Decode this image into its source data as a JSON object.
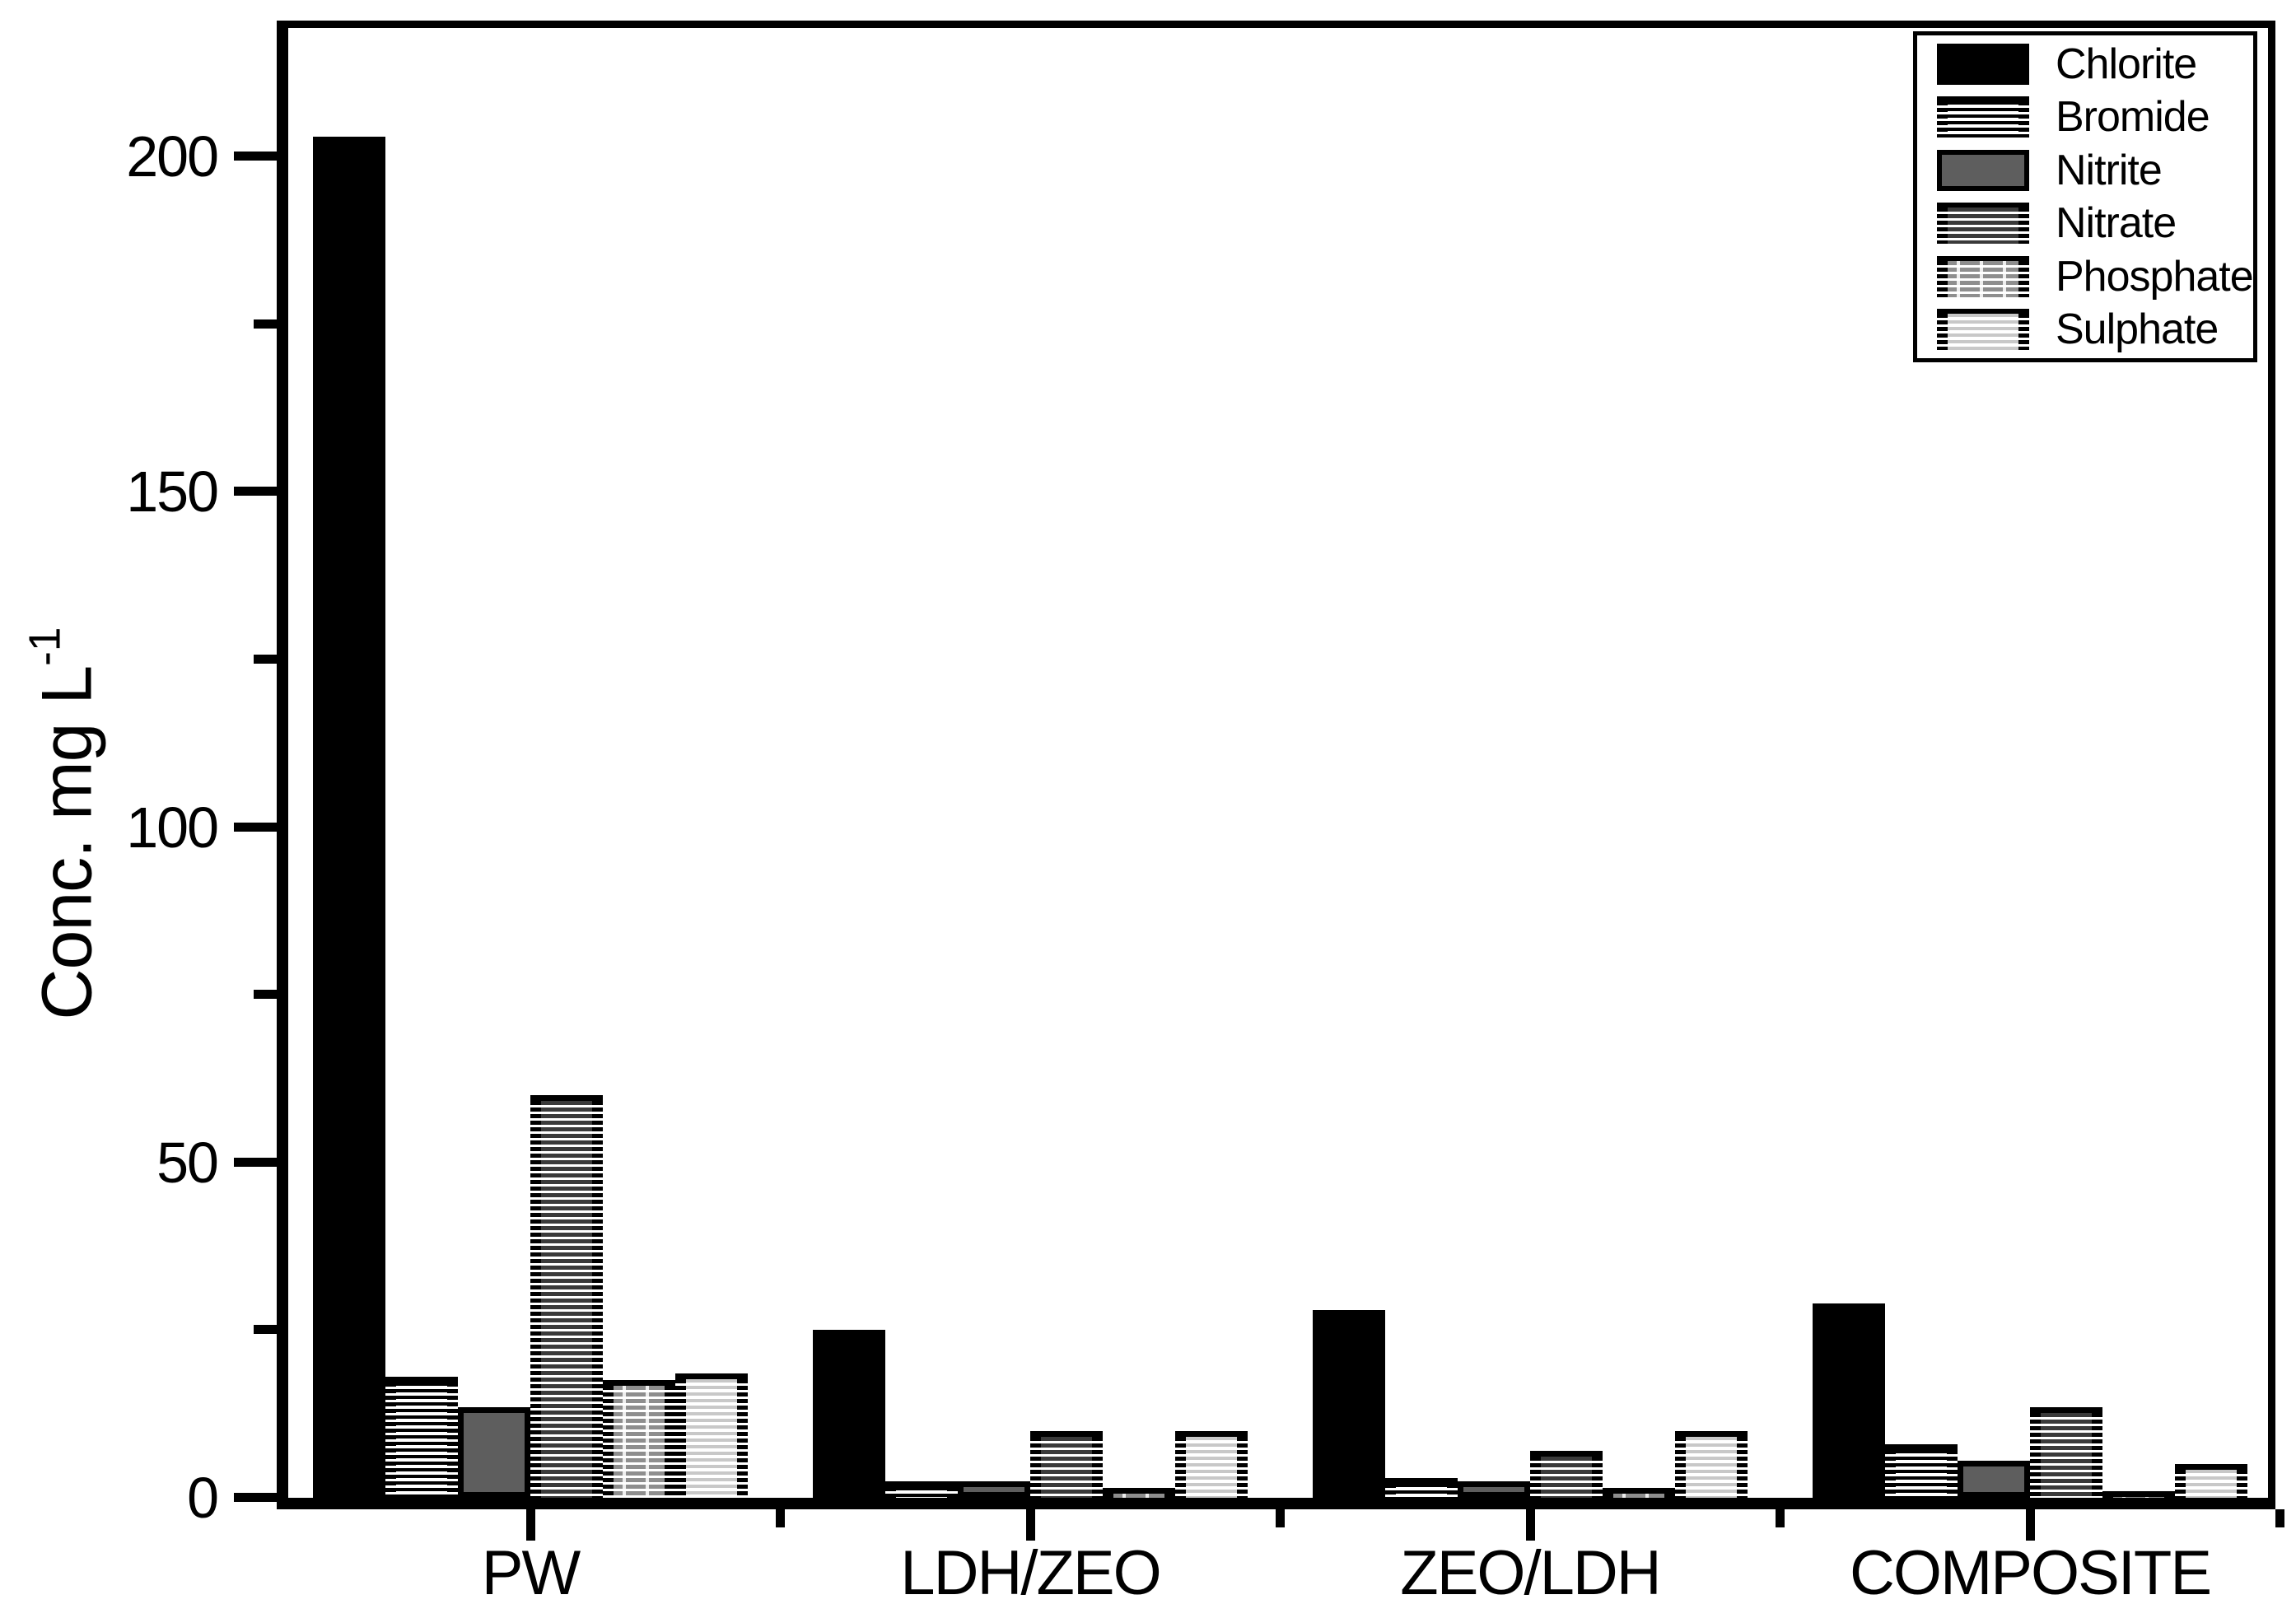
{
  "figure": {
    "background": "#ffffff",
    "axis_color": "#000000",
    "y_axis": {
      "label_text": "Conc. mg L",
      "label_superscript": "-1"
    }
  },
  "chart_data": {
    "type": "bar",
    "title": "",
    "xlabel": "",
    "ylabel": "Conc. mg L⁻¹",
    "categories": [
      "PW",
      "LDH/ZEO",
      "ZEO/LDH",
      "COMPOSITE"
    ],
    "series": [
      {
        "name": "Chlorite",
        "pattern": "solid-black",
        "color": "#000000",
        "values": [
          203,
          25,
          28,
          29
        ]
      },
      {
        "name": "Bromide",
        "pattern": "stripes-black",
        "color": "#000000",
        "values": [
          18,
          2.5,
          3,
          8
        ]
      },
      {
        "name": "Nitrite",
        "pattern": "solid-gray",
        "color": "#5e5e5e",
        "values": [
          13.5,
          2.5,
          2.5,
          5.5
        ]
      },
      {
        "name": "Nitrate",
        "pattern": "stripes-darkgray",
        "color": "#3a3a3a",
        "values": [
          60,
          10,
          7,
          13.5
        ]
      },
      {
        "name": "Phosphate",
        "pattern": "stripes-gray-dotted",
        "color": "#8e8e8e",
        "values": [
          17.5,
          1.5,
          1.5,
          1
        ]
      },
      {
        "name": "Sulphate",
        "pattern": "stripes-lightgray",
        "color": "#c8c8c8",
        "values": [
          18.5,
          10,
          10,
          5
        ]
      }
    ],
    "yticks": [
      0,
      50,
      100,
      150,
      200
    ],
    "yticks_minor": [
      25,
      75,
      125,
      175
    ],
    "ylim": [
      0,
      219
    ],
    "grid": false,
    "legend_position": "top-right",
    "legend_items": [
      "Chlorite",
      "Bromide",
      "Nitrite",
      "Nitrate",
      "Phosphate",
      "Sulphate"
    ]
  }
}
